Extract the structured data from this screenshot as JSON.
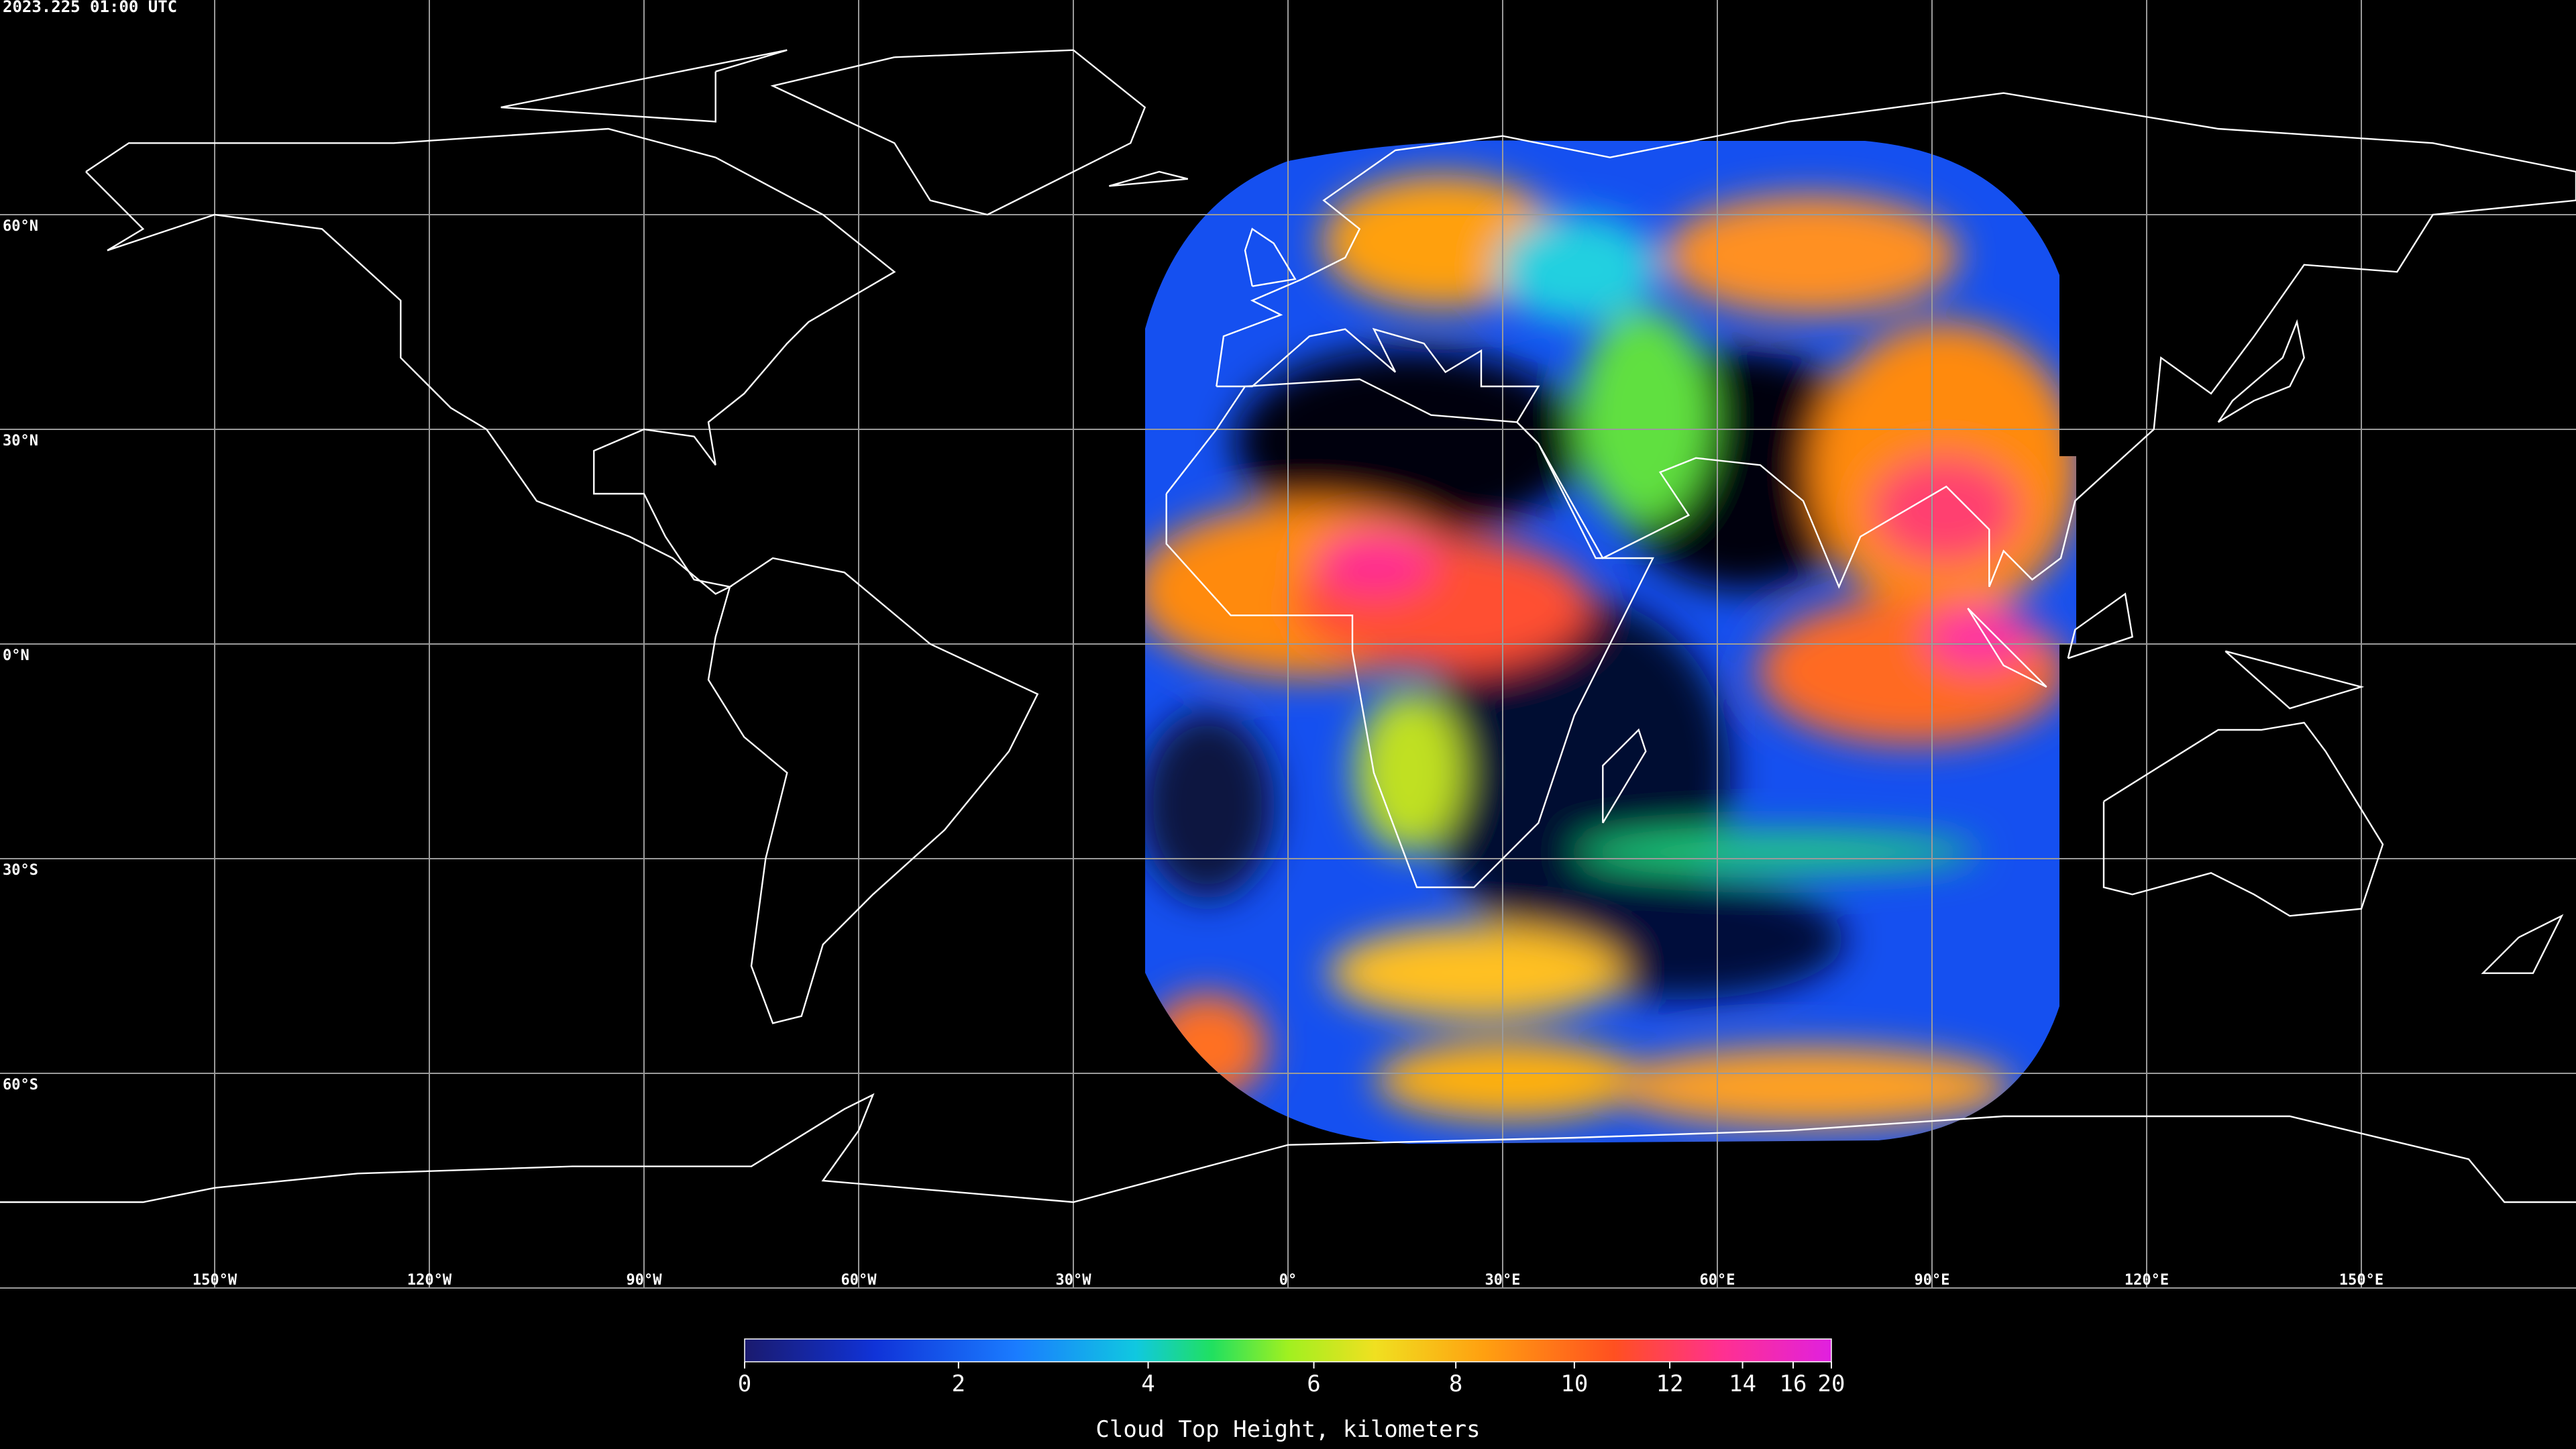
{
  "title": "2023.225 01:00 UTC",
  "map": {
    "parallels": [
      {
        "value": 60,
        "label": "60°N"
      },
      {
        "value": 30,
        "label": "30°N"
      },
      {
        "value": 0,
        "label": "0°N"
      },
      {
        "value": -30,
        "label": "30°S"
      },
      {
        "value": -60,
        "label": "60°S"
      }
    ],
    "meridians": [
      {
        "value": -150,
        "label": "150°W"
      },
      {
        "value": -120,
        "label": "120°W"
      },
      {
        "value": -90,
        "label": "90°W"
      },
      {
        "value": -60,
        "label": "60°W"
      },
      {
        "value": -30,
        "label": "30°W"
      },
      {
        "value": 0,
        "label": "0°"
      },
      {
        "value": 30,
        "label": "30°E"
      },
      {
        "value": 60,
        "label": "60°E"
      },
      {
        "value": 90,
        "label": "90°E"
      },
      {
        "value": 120,
        "label": "120°E"
      },
      {
        "value": 150,
        "label": "150°E"
      }
    ]
  },
  "colorbar": {
    "label": "Cloud Top Height, kilometers",
    "range": [
      0,
      20
    ],
    "ticks": [
      0,
      2,
      4,
      6,
      8,
      10,
      12,
      14,
      16,
      20
    ]
  }
}
